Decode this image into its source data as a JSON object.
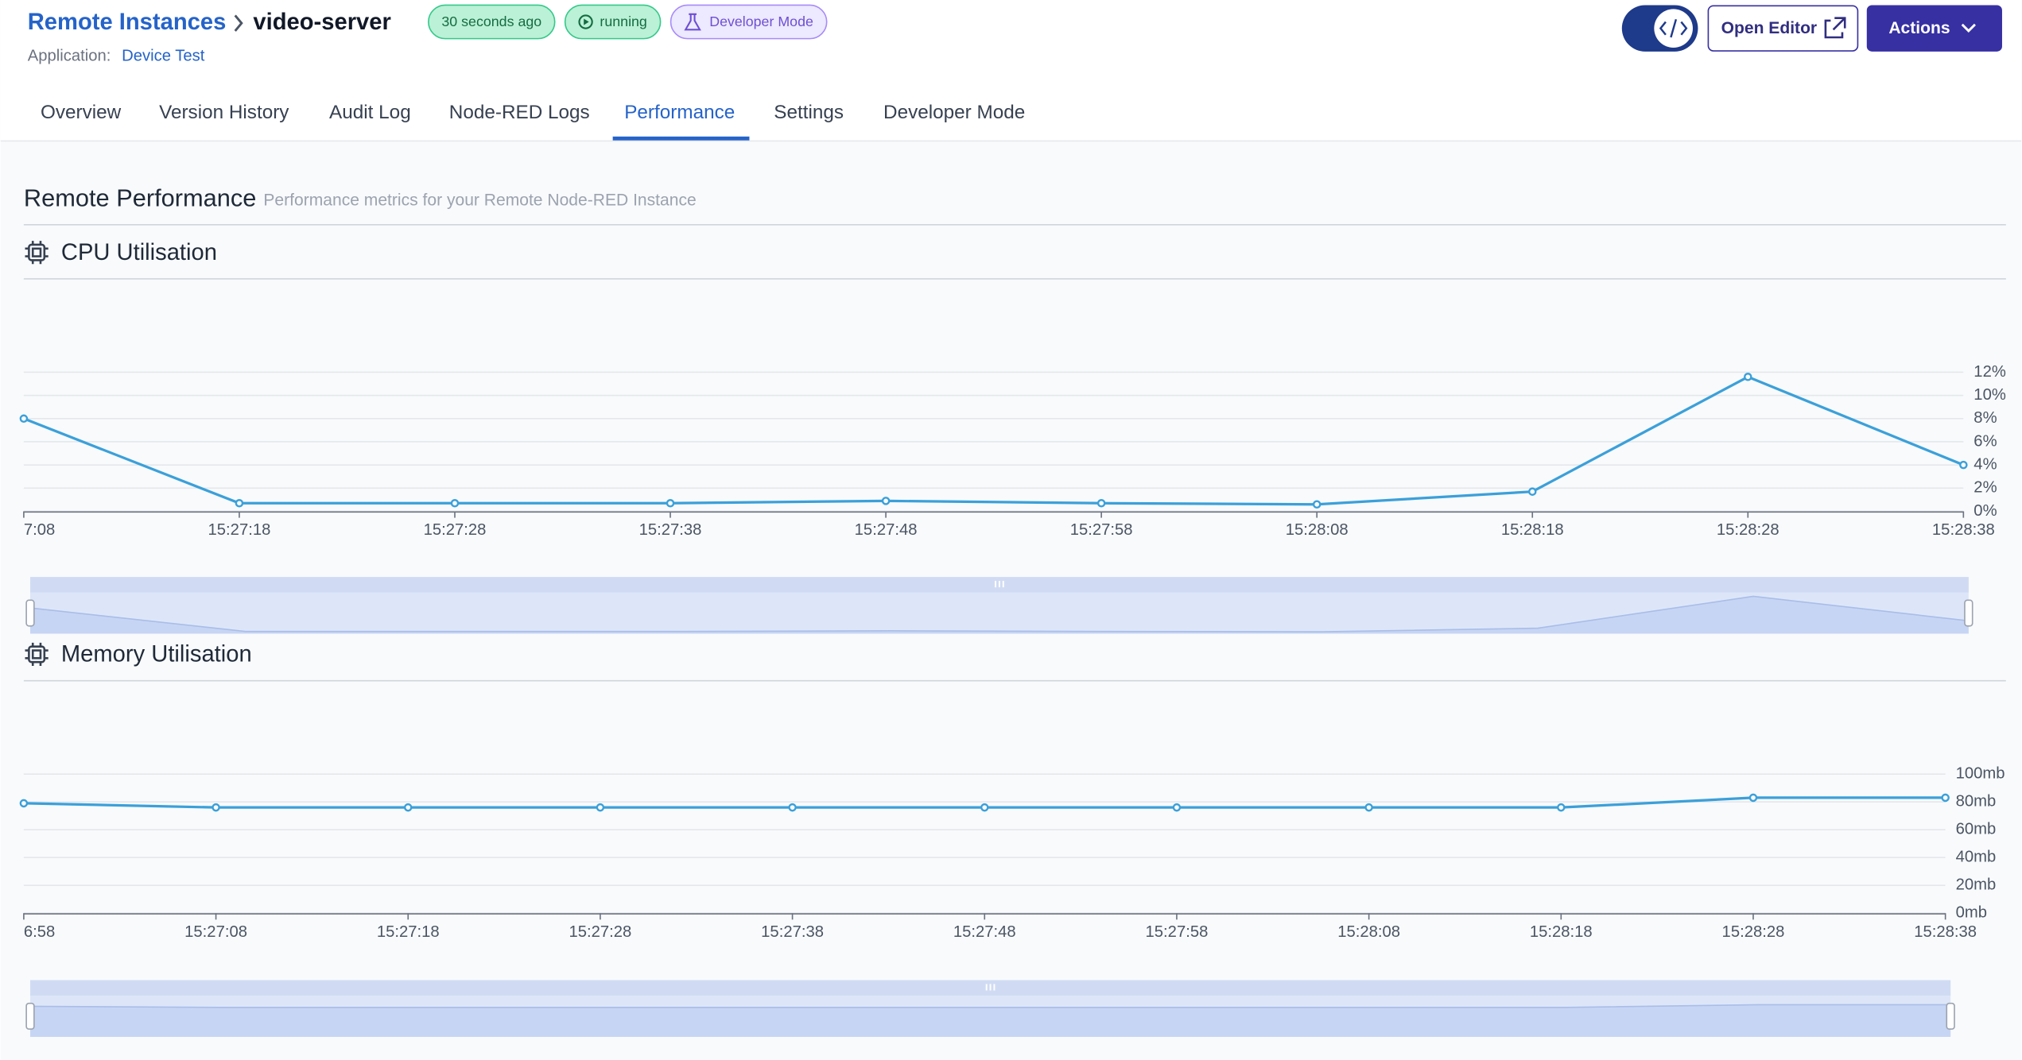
{
  "header": {
    "breadcrumb": "Remote Instances",
    "instance": "video-server",
    "badges": [
      "30 seconds ago",
      "running",
      "Developer Mode"
    ],
    "application_label": "Application:",
    "application": "Device Test",
    "buttons": [
      "Open Editor",
      "Actions"
    ]
  },
  "tabs": [
    "Overview",
    "Version History",
    "Audit Log",
    "Node-RED Logs",
    "Performance",
    "Settings",
    "Developer Mode"
  ],
  "section": {
    "title": "Remote Performance",
    "subtitle": "Performance metrics for your Remote Node-RED Instance"
  },
  "chart_data": [
    {
      "type": "line",
      "title": "CPU Utilisation",
      "categories": [
        "7:08",
        "15:27:18",
        "15:27:28",
        "15:27:38",
        "15:27:48",
        "15:27:58",
        "15:28:08",
        "15:28:18",
        "15:28:28",
        "15:28:38"
      ],
      "values": [
        8,
        0.7,
        0.7,
        0.7,
        0.9,
        0.7,
        0.6,
        1.7,
        11.6,
        4
      ],
      "color": "#3ba0d9",
      "ylim": [
        0,
        12
      ],
      "yticks": [
        {
          "value": 0,
          "label": "0%"
        },
        {
          "value": 2,
          "label": "2%"
        },
        {
          "value": 4,
          "label": "4%"
        },
        {
          "value": 6,
          "label": "6%"
        },
        {
          "value": 8,
          "label": "8%"
        },
        {
          "value": 10,
          "label": "10%"
        },
        {
          "value": 12,
          "label": "12%"
        }
      ],
      "grid": true
    },
    {
      "type": "line",
      "title": "Memory Utilisation",
      "categories": [
        "6:58",
        "15:27:08",
        "15:27:18",
        "15:27:28",
        "15:27:38",
        "15:27:48",
        "15:27:58",
        "15:28:08",
        "15:28:18",
        "15:28:28",
        "15:28:38"
      ],
      "values": [
        79,
        76,
        76,
        76,
        76,
        76,
        76,
        76,
        76,
        83,
        83
      ],
      "color": "#3ba0d9",
      "ylim": [
        0,
        100
      ],
      "yticks": [
        {
          "value": 0,
          "label": "0mb"
        },
        {
          "value": 20,
          "label": "20mb"
        },
        {
          "value": 40,
          "label": "40mb"
        },
        {
          "value": 60,
          "label": "60mb"
        },
        {
          "value": 80,
          "label": "80mb"
        },
        {
          "value": 100,
          "label": "100mb"
        }
      ],
      "grid": true
    }
  ]
}
